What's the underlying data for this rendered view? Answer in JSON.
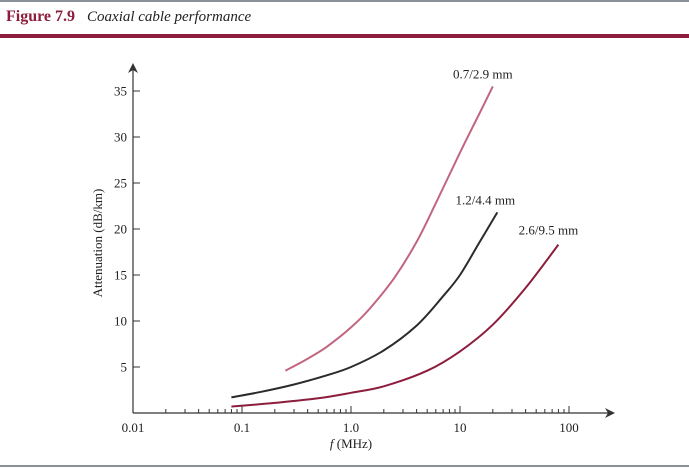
{
  "figure": {
    "number": "Figure 7.9",
    "title": "Coaxial cable performance"
  },
  "colors": {
    "accent": "#8c1d3c",
    "rule": "#8a9098"
  },
  "chart_data": {
    "type": "line",
    "xscale": "log",
    "xlim": [
      0.01,
      200
    ],
    "ylim": [
      0,
      38
    ],
    "xlabel_italic": "f",
    "xlabel_rest": " (MHz)",
    "ylabel": "Attenuation (dB/km)",
    "x_ticks": [
      {
        "value": 0.01,
        "label": "0.01"
      },
      {
        "value": 0.1,
        "label": "0.1"
      },
      {
        "value": 1,
        "label": "1.0"
      },
      {
        "value": 10,
        "label": "10"
      },
      {
        "value": 100,
        "label": "100"
      }
    ],
    "y_ticks": [
      {
        "value": 5,
        "label": "5"
      },
      {
        "value": 10,
        "label": "10"
      },
      {
        "value": 15,
        "label": "15"
      },
      {
        "value": 20,
        "label": "20"
      },
      {
        "value": 25,
        "label": "25"
      },
      {
        "value": 30,
        "label": "30"
      },
      {
        "value": 35,
        "label": "35"
      }
    ],
    "series": [
      {
        "name": "0.7/2.9 mm",
        "color": "#c2657f",
        "x": [
          0.25,
          0.4,
          0.6,
          1.0,
          1.5,
          2.5,
          4,
          6,
          10,
          15,
          20
        ],
        "y": [
          4.6,
          5.9,
          7.2,
          9.3,
          11.4,
          14.7,
          18.6,
          22.8,
          28.3,
          32.5,
          35.5
        ]
      },
      {
        "name": "1.2/4.4 mm",
        "color": "#2b2b2b",
        "x": [
          0.08,
          0.15,
          0.3,
          0.6,
          1.0,
          2,
          4,
          7,
          10,
          15,
          22
        ],
        "y": [
          1.7,
          2.3,
          3.1,
          4.1,
          5.0,
          6.8,
          9.5,
          12.7,
          15.0,
          18.5,
          21.8
        ]
      },
      {
        "name": "2.6/9.5 mm",
        "color": "#8c1d3c",
        "x": [
          0.08,
          0.2,
          0.5,
          1.0,
          2,
          5,
          10,
          20,
          40,
          80
        ],
        "y": [
          0.7,
          1.1,
          1.6,
          2.2,
          2.9,
          4.6,
          6.7,
          9.6,
          13.6,
          18.3
        ]
      }
    ]
  }
}
